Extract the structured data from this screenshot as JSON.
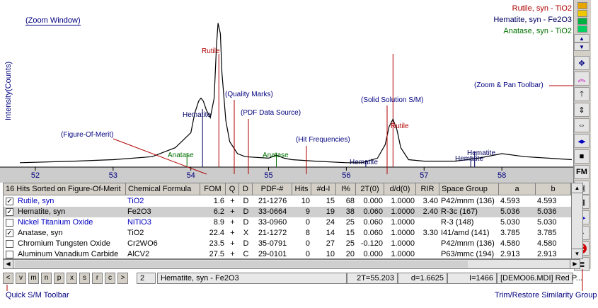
{
  "zoom_window": {
    "label": "Zoom Window"
  },
  "legend": [
    {
      "name": "Rutile, syn - TiO2",
      "color": "#b00000"
    },
    {
      "name": "Hematite, syn - Fe2O3",
      "color": "#000060"
    },
    {
      "name": "Anatase, syn - TiO2",
      "color": "#007000"
    }
  ],
  "callouts": {
    "quality_marks": "Quality Marks",
    "pdf_source": "PDF Data Source",
    "solid_solution": "Solid Solution S/M",
    "zoom_pan": "Zoom & Pan Toolbar",
    "figure_of_merit": "Figure-Of-Merit",
    "hit_freq": "Hit Frequencies",
    "quick_sm": "Quick S/M Toolbar",
    "trim_restore": "Trim/Restore Similarity Group"
  },
  "peak_labels": {
    "rutile_1": "Rutile",
    "rutile_2": "Rutile",
    "hematite_1": "Hematite",
    "hematite_2": "Hematite",
    "hematite_3": "Hematite",
    "hematite_4": "Hematite",
    "anatase_1": "Anatase",
    "anatase_2": "Anatase"
  },
  "colors": {
    "rutile": "#b00000",
    "hematite": "#000060",
    "anatase": "#007000",
    "axis_bg": "#cccccc",
    "accent": "#000080"
  },
  "chart_data": {
    "type": "line",
    "ylabel": "Intensity(Counts)",
    "xlabel": "",
    "x_ticks": [
      "52",
      "53",
      "54",
      "55",
      "56",
      "57",
      "58"
    ],
    "xlim": [
      51.8,
      58.9
    ],
    "ylim": [
      0,
      1
    ],
    "series": [
      {
        "x": [
          51.8,
          52.5,
          53.0,
          53.5,
          53.8,
          54.0,
          54.05,
          54.1,
          54.13,
          54.16,
          54.2,
          54.25,
          54.3,
          54.33,
          54.35,
          54.38,
          54.4,
          54.45,
          54.5,
          54.6,
          54.7,
          55.0,
          55.1,
          55.2,
          55.3,
          55.6,
          56.0,
          56.2,
          56.4,
          56.5,
          56.55,
          56.6,
          56.65,
          56.7,
          56.8,
          57.0,
          57.4,
          57.7,
          58.0,
          58.3,
          58.6,
          58.9
        ],
        "y": [
          0.02,
          0.03,
          0.04,
          0.06,
          0.12,
          0.22,
          0.35,
          0.43,
          0.45,
          0.43,
          0.37,
          0.32,
          0.45,
          0.8,
          0.95,
          0.88,
          0.62,
          0.3,
          0.16,
          0.08,
          0.06,
          0.05,
          0.07,
          0.05,
          0.04,
          0.03,
          0.02,
          0.02,
          0.05,
          0.14,
          0.26,
          0.31,
          0.24,
          0.12,
          0.04,
          0.03,
          0.03,
          0.05,
          0.08,
          0.06,
          0.05,
          0.04
        ]
      }
    ]
  },
  "table": {
    "title_col": "16 Hits Sorted on Figure-Of-Merit",
    "columns": [
      "Chemical Formula",
      "FOM",
      "Q",
      "D",
      "PDF-#",
      "Hits",
      "#d-I",
      "I%",
      "2T(0)",
      "d/d(0)",
      "RIR",
      "Space Group",
      "a",
      "b"
    ],
    "rows": [
      {
        "checked": true,
        "name": "Rutile, syn",
        "formula": "TiO2",
        "fom": "1.6",
        "q": "+",
        "d": "D",
        "pdf": "21-1276",
        "hits": "10",
        "ndi": "15",
        "ipct": "68",
        "t0": "0.000",
        "dd0": "1.0000",
        "rir": "3.40",
        "sg": "P42/mnm (136)",
        "a": "4.593",
        "b": "4.593",
        "color": "#0000c0"
      },
      {
        "checked": true,
        "name": "Hematite, syn",
        "formula": "Fe2O3",
        "fom": "6.2",
        "q": "+",
        "d": "D",
        "pdf": "33-0664",
        "hits": "9",
        "ndi": "19",
        "ipct": "38",
        "t0": "0.060",
        "dd0": "1.0000",
        "rir": "2.40",
        "sg": "R-3c (167)",
        "a": "5.036",
        "b": "5.036",
        "color": "#000000"
      },
      {
        "checked": false,
        "name": "Nickel Titanium Oxide",
        "formula": "NiTiO3",
        "fom": "8.9",
        "q": "+",
        "d": "D",
        "pdf": "33-0960",
        "hits": "0",
        "ndi": "24",
        "ipct": "25",
        "t0": "0.060",
        "dd0": "1.0000",
        "rir": "",
        "sg": "R-3 (148)",
        "a": "5.030",
        "b": "5.030",
        "color": "#0000c0"
      },
      {
        "checked": true,
        "name": "Anatase, syn",
        "formula": "TiO2",
        "fom": "22.4",
        "q": "+",
        "d": "X",
        "pdf": "21-1272",
        "hits": "8",
        "ndi": "14",
        "ipct": "15",
        "t0": "0.060",
        "dd0": "1.0000",
        "rir": "3.30",
        "sg": "I41/amd (141)",
        "a": "3.785",
        "b": "3.785",
        "color": "#000000"
      },
      {
        "checked": false,
        "name": "Chromium Tungsten Oxide",
        "formula": "Cr2WO6",
        "fom": "23.5",
        "q": "+",
        "d": "D",
        "pdf": "35-0791",
        "hits": "0",
        "ndi": "27",
        "ipct": "25",
        "t0": "-0.120",
        "dd0": "1.0000",
        "rir": "",
        "sg": "P42/mnm (136)",
        "a": "4.580",
        "b": "4.580",
        "color": "#000000"
      },
      {
        "checked": false,
        "name": "Aluminum Vanadium Carbide",
        "formula": "AlCV2",
        "fom": "27.5",
        "q": "+",
        "d": "C",
        "pdf": "29-0101",
        "hits": "0",
        "ndi": "10",
        "ipct": "20",
        "t0": "0.000",
        "dd0": "1.0000",
        "rir": "",
        "sg": "P63/mmc (194)",
        "a": "2.913",
        "b": "2.913",
        "color": "#000000"
      }
    ]
  },
  "quick_sm_buttons": [
    "<",
    "v",
    "m",
    "n",
    "p",
    "x",
    "s",
    "r",
    "c",
    ">"
  ],
  "status": {
    "count": "2",
    "phase": "Hematite, syn - Fe2O3",
    "two_theta": "2T=55.203",
    "d": "d=1.6625",
    "i": "I=1466",
    "file": "[DEMO06.MDI] Red P..."
  },
  "right_toolbar": {
    "fm_label": "FM"
  }
}
